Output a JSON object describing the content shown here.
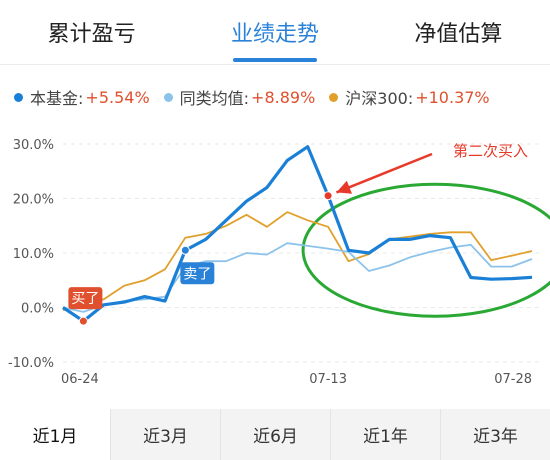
{
  "tabs": [
    {
      "label": "累计盈亏",
      "active": false
    },
    {
      "label": "业绩走势",
      "active": true
    },
    {
      "label": "净值估算",
      "active": false
    }
  ],
  "legend": [
    {
      "name": "本基金:",
      "value": "+5.54%",
      "color": "#1a7fd6"
    },
    {
      "name": "同类均值:",
      "value": "+8.89%",
      "color": "#8dc3ea"
    },
    {
      "name": "沪深300:",
      "value": "+10.37%",
      "color": "#e0a02b"
    }
  ],
  "chart_data": {
    "type": "line",
    "ylim": [
      -10,
      30
    ],
    "yticks": [
      "30.0%",
      "20.0%",
      "10.0%",
      "0.0%",
      "-10.0%"
    ],
    "ytick_values": [
      30,
      20,
      10,
      0,
      -10
    ],
    "xticks": [
      {
        "label": "06-24",
        "index": 0
      },
      {
        "label": "07-13",
        "index": 13
      },
      {
        "label": "07-28",
        "index": 23
      }
    ],
    "grid": true,
    "series": [
      {
        "name": "本基金",
        "color": "#1a7fd6",
        "values": [
          0,
          -2.5,
          0.5,
          1,
          2,
          1.2,
          10.5,
          12.5,
          16,
          19.5,
          22,
          27,
          29.5,
          20.5,
          10.5,
          10,
          12.5,
          12.5,
          13.2,
          12.8,
          5.5,
          5.2,
          5.3,
          5.54
        ]
      },
      {
        "name": "同类均值",
        "color": "#8dc3ea",
        "values": [
          0,
          -0.8,
          0.5,
          1.2,
          1.5,
          2,
          7.5,
          8.5,
          8.5,
          10,
          9.7,
          11.8,
          11.3,
          10.8,
          10.2,
          6.7,
          7.7,
          9.2,
          10.2,
          11,
          11.5,
          7.5,
          7.5,
          8.89
        ]
      },
      {
        "name": "沪深300",
        "color": "#e0a02b",
        "values": [
          -0.5,
          0.5,
          1.5,
          4,
          5,
          7,
          12.8,
          13.5,
          15,
          17,
          14.8,
          17.5,
          16,
          14.8,
          8.5,
          9.8,
          12.5,
          13,
          13.5,
          13.8,
          13.8,
          8.7,
          9.5,
          10.37
        ]
      }
    ],
    "markers": [
      {
        "series": 0,
        "index": 1,
        "label": "买了",
        "color": "#e1502e",
        "label_bg": "#e1502e",
        "anchor": "above"
      },
      {
        "series": 0,
        "index": 6,
        "label": "卖了",
        "color": "#2a82d8",
        "label_bg": "#2a82d8",
        "anchor": "below"
      },
      {
        "series": 0,
        "index": 13,
        "label": "",
        "color": "#e83a2a",
        "label_bg": "",
        "anchor": "none"
      }
    ],
    "annotation": {
      "text": "第二次买入",
      "color": "#e83a2a",
      "arrow_color": "#e83a2a",
      "target_index": 13
    },
    "highlight_ellipse": {
      "color": "#2aa834",
      "from_index": 13,
      "to_index": 23
    }
  },
  "periods": [
    {
      "label": "近1月",
      "active": true
    },
    {
      "label": "近3月",
      "active": false
    },
    {
      "label": "近6月",
      "active": false
    },
    {
      "label": "近1年",
      "active": false
    },
    {
      "label": "近3年",
      "active": false
    }
  ]
}
